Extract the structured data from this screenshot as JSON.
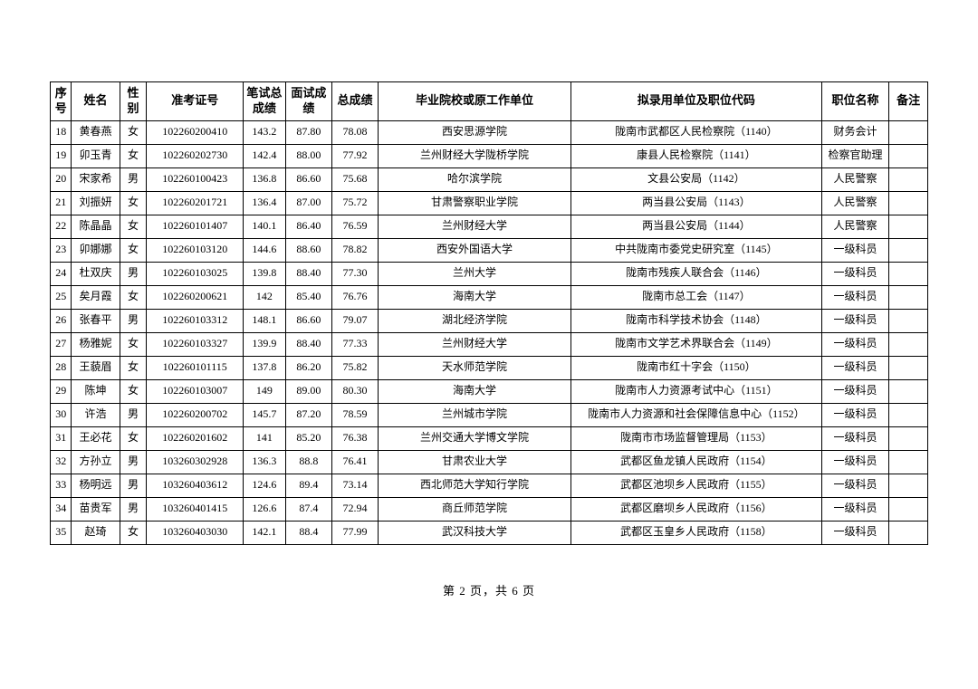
{
  "table": {
    "columns": [
      "序号",
      "姓名",
      "性别",
      "准考证号",
      "笔试总成绩",
      "面试成绩",
      "总成绩",
      "毕业院校或原工作单位",
      "拟录用单位及职位代码",
      "职位名称",
      "备注"
    ],
    "rows": [
      [
        "18",
        "黄春燕",
        "女",
        "102260200410",
        "143.2",
        "87.80",
        "78.08",
        "西安思源学院",
        "陇南市武都区人民检察院（1140）",
        "财务会计",
        ""
      ],
      [
        "19",
        "卯玉青",
        "女",
        "102260202730",
        "142.4",
        "88.00",
        "77.92",
        "兰州财经大学陇桥学院",
        "康县人民检察院（1141）",
        "检察官助理",
        ""
      ],
      [
        "20",
        "宋家希",
        "男",
        "102260100423",
        "136.8",
        "86.60",
        "75.68",
        "哈尔滨学院",
        "文县公安局（1142）",
        "人民警察",
        ""
      ],
      [
        "21",
        "刘振妍",
        "女",
        "102260201721",
        "136.4",
        "87.00",
        "75.72",
        "甘肃警察职业学院",
        "两当县公安局（1143）",
        "人民警察",
        ""
      ],
      [
        "22",
        "陈晶晶",
        "女",
        "102260101407",
        "140.1",
        "86.40",
        "76.59",
        "兰州财经大学",
        "两当县公安局（1144）",
        "人民警察",
        ""
      ],
      [
        "23",
        "卯娜娜",
        "女",
        "102260103120",
        "144.6",
        "88.60",
        "78.82",
        "西安外国语大学",
        "中共陇南市委党史研究室（1145）",
        "一级科员",
        ""
      ],
      [
        "24",
        "杜双庆",
        "男",
        "102260103025",
        "139.8",
        "88.40",
        "77.30",
        "兰州大学",
        "陇南市残疾人联合会（1146）",
        "一级科员",
        ""
      ],
      [
        "25",
        "矣月霞",
        "女",
        "102260200621",
        "142",
        "85.40",
        "76.76",
        "海南大学",
        "陇南市总工会（1147）",
        "一级科员",
        ""
      ],
      [
        "26",
        "张春平",
        "男",
        "102260103312",
        "148.1",
        "86.60",
        "79.07",
        "湖北经济学院",
        "陇南市科学技术协会（1148）",
        "一级科员",
        ""
      ],
      [
        "27",
        "杨雅妮",
        "女",
        "102260103327",
        "139.9",
        "88.40",
        "77.33",
        "兰州财经大学",
        "陇南市文学艺术界联合会（1149）",
        "一级科员",
        ""
      ],
      [
        "28",
        "王藐眉",
        "女",
        "102260101115",
        "137.8",
        "86.20",
        "75.82",
        "天水师范学院",
        "陇南市红十字会（1150）",
        "一级科员",
        ""
      ],
      [
        "29",
        "陈坤",
        "女",
        "102260103007",
        "149",
        "89.00",
        "80.30",
        "海南大学",
        "陇南市人力资源考试中心（1151）",
        "一级科员",
        ""
      ],
      [
        "30",
        "许浩",
        "男",
        "102260200702",
        "145.7",
        "87.20",
        "78.59",
        "兰州城市学院",
        "陇南市人力资源和社会保障信息中心（1152）",
        "一级科员",
        ""
      ],
      [
        "31",
        "王必花",
        "女",
        "102260201602",
        "141",
        "85.20",
        "76.38",
        "兰州交通大学博文学院",
        "陇南市市场监督管理局（1153）",
        "一级科员",
        ""
      ],
      [
        "32",
        "方孙立",
        "男",
        "103260302928",
        "136.3",
        "88.8",
        "76.41",
        "甘肃农业大学",
        "武都区鱼龙镇人民政府（1154）",
        "一级科员",
        ""
      ],
      [
        "33",
        "杨明远",
        "男",
        "103260403612",
        "124.6",
        "89.4",
        "73.14",
        "西北师范大学知行学院",
        "武都区池坝乡人民政府（1155）",
        "一级科员",
        ""
      ],
      [
        "34",
        "苗贵军",
        "男",
        "103260401415",
        "126.6",
        "87.4",
        "72.94",
        "商丘师范学院",
        "武都区磨坝乡人民政府（1156）",
        "一级科员",
        ""
      ],
      [
        "35",
        "赵琦",
        "女",
        "103260403030",
        "142.1",
        "88.4",
        "77.99",
        "武汉科技大学",
        "武都区玉皇乡人民政府（1158）",
        "一级科员",
        ""
      ]
    ]
  },
  "footer": "第 2 页，共 6 页"
}
